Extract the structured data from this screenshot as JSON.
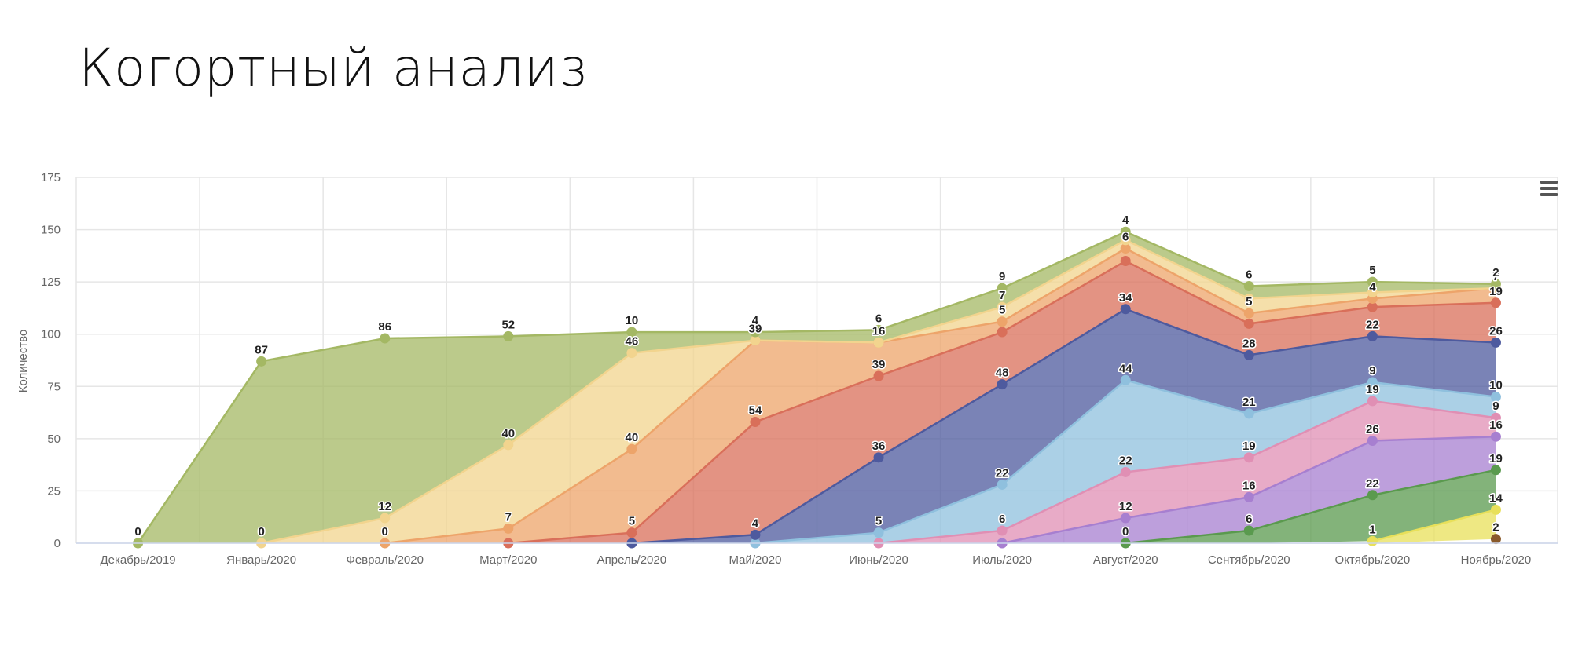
{
  "page": {
    "title": "Когортный анализ"
  },
  "menu": {
    "icon": "hamburger-menu-icon"
  },
  "chart_data": {
    "type": "area",
    "stacked": true,
    "title": "",
    "xlabel": "",
    "ylabel": "Количество",
    "ylim": [
      0,
      175
    ],
    "yticks": [
      0,
      25,
      50,
      75,
      100,
      125,
      150,
      175
    ],
    "grid": true,
    "legend": "none",
    "categories": [
      "Декабрь/2019",
      "Январь/2020",
      "Февраль/2020",
      "Март/2020",
      "Апрель/2020",
      "Май/2020",
      "Июнь/2020",
      "Июль/2020",
      "Август/2020",
      "Сентябрь/2020",
      "Октябрь/2020",
      "Ноябрь/2020"
    ],
    "series": [
      {
        "color": "#8a5a2b",
        "values": [
          null,
          null,
          null,
          null,
          null,
          null,
          null,
          null,
          null,
          null,
          null,
          2
        ],
        "labels": [
          null,
          null,
          null,
          null,
          null,
          null,
          null,
          null,
          null,
          null,
          null,
          "2"
        ]
      },
      {
        "color": "#e8e05a",
        "values": [
          null,
          null,
          null,
          null,
          null,
          null,
          null,
          null,
          null,
          null,
          1,
          14
        ],
        "labels": [
          null,
          null,
          null,
          null,
          null,
          null,
          null,
          null,
          null,
          null,
          "1",
          "14"
        ]
      },
      {
        "color": "#5a9a4e",
        "values": [
          null,
          null,
          null,
          null,
          null,
          null,
          null,
          null,
          0,
          6,
          22,
          19
        ],
        "labels": [
          null,
          null,
          null,
          null,
          null,
          null,
          null,
          null,
          "0",
          "6",
          "22",
          "19"
        ]
      },
      {
        "color": "#a77fd0",
        "values": [
          null,
          null,
          null,
          null,
          null,
          null,
          null,
          0,
          12,
          16,
          26,
          16
        ],
        "labels": [
          null,
          null,
          null,
          null,
          null,
          null,
          null,
          null,
          "12",
          "16",
          "26",
          "16"
        ]
      },
      {
        "color": "#e08fb4",
        "values": [
          null,
          null,
          null,
          null,
          null,
          null,
          0,
          6,
          22,
          19,
          19,
          9
        ],
        "labels": [
          null,
          null,
          null,
          null,
          null,
          null,
          null,
          "6",
          "22",
          "19",
          "19",
          "9"
        ]
      },
      {
        "color": "#8fc0de",
        "values": [
          null,
          null,
          null,
          null,
          null,
          0,
          5,
          22,
          44,
          21,
          9,
          10
        ],
        "labels": [
          null,
          null,
          null,
          null,
          null,
          null,
          "5",
          "22",
          "44",
          "21",
          "9",
          "10"
        ]
      },
      {
        "color": "#4e5a9e",
        "values": [
          null,
          null,
          null,
          null,
          0,
          4,
          36,
          48,
          34,
          28,
          22,
          26
        ],
        "labels": [
          null,
          null,
          null,
          null,
          null,
          "4",
          "36",
          "48",
          "34",
          "28",
          "22",
          "26"
        ]
      },
      {
        "color": "#d96f5a",
        "values": [
          null,
          null,
          null,
          0,
          5,
          54,
          39,
          25,
          23,
          15,
          14,
          19
        ],
        "labels": [
          null,
          null,
          null,
          null,
          "5",
          "54",
          "39",
          null,
          null,
          null,
          null,
          "19"
        ]
      },
      {
        "color": "#eda46a",
        "values": [
          null,
          null,
          0,
          7,
          40,
          39,
          16,
          5,
          6,
          5,
          4,
          7
        ],
        "labels": [
          null,
          null,
          "0",
          "7",
          "40",
          "39",
          "16",
          "5",
          "6",
          "5",
          "4",
          "7"
        ]
      },
      {
        "color": "#f2d48e",
        "values": [
          null,
          0,
          12,
          40,
          46,
          0,
          0,
          7,
          4,
          7,
          3,
          0
        ],
        "labels": [
          null,
          "0",
          "12",
          "40",
          "46",
          null,
          null,
          "7",
          null,
          null,
          null,
          null
        ]
      },
      {
        "color": "#a4b864",
        "values": [
          0,
          87,
          86,
          52,
          10,
          4,
          6,
          9,
          4,
          6,
          5,
          2
        ],
        "labels": [
          "0",
          "87",
          "86",
          "52",
          "10",
          "4",
          "6",
          "9",
          "4",
          "6",
          "5",
          "2"
        ]
      }
    ]
  }
}
